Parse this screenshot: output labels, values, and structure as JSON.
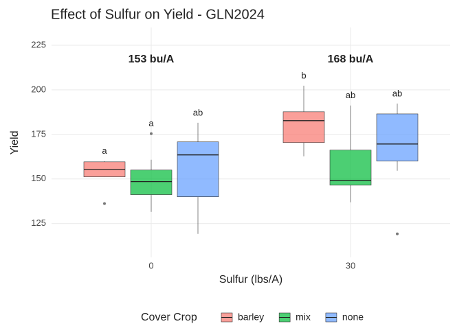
{
  "chart_data": {
    "type": "box",
    "title": "Effect of Sulfur on Yield - GLN2024",
    "x_label": "Sulfur (lbs/A)",
    "y_label": "Yield",
    "categories": [
      "0",
      "30"
    ],
    "annotations": [
      "153 bu/A",
      "168 bu/A"
    ],
    "legend_title": "Cover Crop",
    "legend": "bottom",
    "grid": true,
    "ylim": [
      106,
      235
    ],
    "yticks": [
      125,
      150,
      175,
      200,
      225
    ],
    "series": [
      {
        "name": "barley",
        "color": "#f8766d",
        "letters": [
          "a",
          "b"
        ],
        "boxes": [
          {
            "min": 151,
            "q1": 151.2,
            "median": 155.4,
            "q3": 159.6,
            "max": 160,
            "outliers": [
              136.2
            ]
          },
          {
            "min": 162.7,
            "q1": 170.4,
            "median": 182.7,
            "q3": 187.7,
            "max": 202.3,
            "outliers": []
          }
        ]
      },
      {
        "name": "mix",
        "color": "#00ba38",
        "letters": [
          "a",
          "ab"
        ],
        "boxes": [
          {
            "min": 131.5,
            "q1": 141.2,
            "median": 148.5,
            "q3": 155,
            "max": 160.8,
            "outliers": [
              175.4
            ]
          },
          {
            "min": 136.9,
            "q1": 146.5,
            "median": 149.2,
            "q3": 166.2,
            "max": 191.2,
            "outliers": []
          }
        ]
      },
      {
        "name": "none",
        "color": "#619cff",
        "letters": [
          "ab",
          "ab"
        ],
        "boxes": [
          {
            "min": 119.2,
            "q1": 140,
            "median": 163.5,
            "q3": 170.8,
            "max": 181.5,
            "outliers": []
          },
          {
            "min": 154.6,
            "q1": 160,
            "median": 169.6,
            "q3": 186.5,
            "max": 192.3,
            "outliers": [
              119.2
            ]
          }
        ]
      }
    ]
  }
}
